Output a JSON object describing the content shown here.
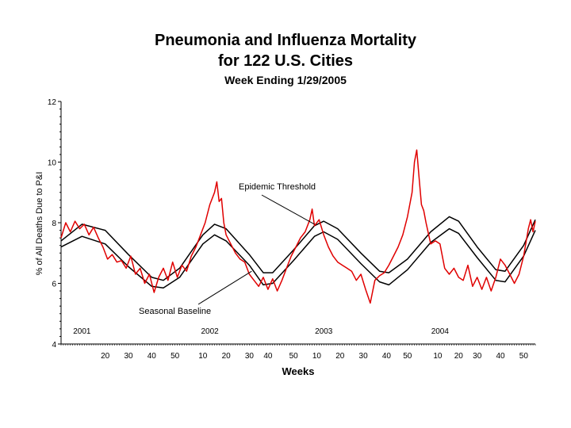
{
  "chart_data": {
    "type": "line",
    "title": "Pneumonia and Influenza Mortality",
    "title_line2": "for 122 U.S. Cities",
    "subtitle": "Week Ending 1/29/2005",
    "xlabel": "Weeks",
    "ylabel": "% of All Deaths Due to P&I",
    "ylim": [
      4,
      12
    ],
    "y_ticks": [
      4,
      6,
      8,
      10,
      12
    ],
    "x_tick_labels": [
      "20",
      "30",
      "40",
      "50",
      "10",
      "20",
      "30",
      "40",
      "50",
      "10",
      "20",
      "30",
      "40",
      "50",
      "10",
      "20",
      "30",
      "40",
      "50"
    ],
    "x_tick_weeks": [
      20,
      30,
      40,
      50,
      62,
      72,
      82,
      90,
      101,
      111,
      121,
      131,
      141,
      150,
      163,
      172,
      180,
      190,
      200
    ],
    "year_labels": [
      {
        "label": "2001",
        "week": 10
      },
      {
        "label": "2002",
        "week": 65
      },
      {
        "label": "2003",
        "week": 114
      },
      {
        "label": "2004",
        "week": 164
      }
    ],
    "x_range_weeks": [
      1,
      205
    ],
    "annotations": [
      {
        "text": "Epidemic Threshold",
        "series": "Epidemic Threshold"
      },
      {
        "text": "Seasonal Baseline",
        "series": "Seasonal Baseline"
      }
    ],
    "grid": false,
    "series": [
      {
        "name": "Epidemic Threshold",
        "color": "#000000",
        "points": [
          [
            1,
            7.4
          ],
          [
            10,
            7.95
          ],
          [
            20,
            7.75
          ],
          [
            30,
            6.95
          ],
          [
            40,
            6.2
          ],
          [
            45,
            6.1
          ],
          [
            52,
            6.5
          ],
          [
            62,
            7.6
          ],
          [
            67,
            7.95
          ],
          [
            72,
            7.8
          ],
          [
            82,
            6.95
          ],
          [
            88,
            6.35
          ],
          [
            92,
            6.35
          ],
          [
            101,
            7.1
          ],
          [
            110,
            7.9
          ],
          [
            114,
            8.05
          ],
          [
            120,
            7.8
          ],
          [
            130,
            7.0
          ],
          [
            138,
            6.4
          ],
          [
            142,
            6.35
          ],
          [
            150,
            6.8
          ],
          [
            160,
            7.7
          ],
          [
            168,
            8.2
          ],
          [
            172,
            8.05
          ],
          [
            180,
            7.2
          ],
          [
            188,
            6.45
          ],
          [
            192,
            6.4
          ],
          [
            200,
            7.25
          ],
          [
            205,
            8.1
          ]
        ]
      },
      {
        "name": "Seasonal Baseline",
        "color": "#000000",
        "points": [
          [
            1,
            7.2
          ],
          [
            10,
            7.55
          ],
          [
            20,
            7.3
          ],
          [
            30,
            6.55
          ],
          [
            40,
            5.9
          ],
          [
            45,
            5.85
          ],
          [
            52,
            6.2
          ],
          [
            62,
            7.3
          ],
          [
            67,
            7.6
          ],
          [
            72,
            7.4
          ],
          [
            82,
            6.6
          ],
          [
            88,
            5.95
          ],
          [
            92,
            6.0
          ],
          [
            101,
            6.75
          ],
          [
            110,
            7.55
          ],
          [
            114,
            7.7
          ],
          [
            120,
            7.45
          ],
          [
            130,
            6.65
          ],
          [
            138,
            6.05
          ],
          [
            142,
            5.95
          ],
          [
            150,
            6.45
          ],
          [
            160,
            7.35
          ],
          [
            168,
            7.8
          ],
          [
            172,
            7.65
          ],
          [
            180,
            6.85
          ],
          [
            188,
            6.1
          ],
          [
            192,
            6.05
          ],
          [
            200,
            6.9
          ],
          [
            205,
            7.75
          ]
        ]
      },
      {
        "name": "P&I",
        "color": "#e00000",
        "points": [
          [
            1,
            7.5
          ],
          [
            3,
            8.0
          ],
          [
            5,
            7.7
          ],
          [
            7,
            8.05
          ],
          [
            9,
            7.8
          ],
          [
            11,
            7.95
          ],
          [
            13,
            7.6
          ],
          [
            15,
            7.85
          ],
          [
            17,
            7.5
          ],
          [
            19,
            7.2
          ],
          [
            21,
            6.8
          ],
          [
            23,
            6.95
          ],
          [
            25,
            6.7
          ],
          [
            27,
            6.75
          ],
          [
            29,
            6.5
          ],
          [
            31,
            6.9
          ],
          [
            33,
            6.3
          ],
          [
            35,
            6.5
          ],
          [
            37,
            6.0
          ],
          [
            39,
            6.3
          ],
          [
            41,
            5.7
          ],
          [
            43,
            6.2
          ],
          [
            45,
            6.5
          ],
          [
            47,
            6.1
          ],
          [
            49,
            6.7
          ],
          [
            51,
            6.2
          ],
          [
            53,
            6.6
          ],
          [
            55,
            6.4
          ],
          [
            57,
            6.9
          ],
          [
            59,
            7.2
          ],
          [
            61,
            7.6
          ],
          [
            63,
            8.0
          ],
          [
            65,
            8.6
          ],
          [
            67,
            9.0
          ],
          [
            68,
            9.35
          ],
          [
            69,
            8.7
          ],
          [
            70,
            8.8
          ],
          [
            71,
            8.0
          ],
          [
            72,
            7.6
          ],
          [
            74,
            7.3
          ],
          [
            76,
            7.0
          ],
          [
            78,
            6.8
          ],
          [
            80,
            6.7
          ],
          [
            82,
            6.3
          ],
          [
            84,
            6.1
          ],
          [
            86,
            5.9
          ],
          [
            88,
            6.2
          ],
          [
            90,
            5.8
          ],
          [
            92,
            6.15
          ],
          [
            94,
            5.75
          ],
          [
            96,
            6.1
          ],
          [
            98,
            6.5
          ],
          [
            100,
            6.9
          ],
          [
            102,
            7.2
          ],
          [
            104,
            7.5
          ],
          [
            106,
            7.7
          ],
          [
            108,
            8.1
          ],
          [
            109,
            8.45
          ],
          [
            110,
            7.9
          ],
          [
            112,
            8.1
          ],
          [
            114,
            7.6
          ],
          [
            116,
            7.2
          ],
          [
            118,
            6.9
          ],
          [
            120,
            6.7
          ],
          [
            122,
            6.6
          ],
          [
            124,
            6.5
          ],
          [
            126,
            6.4
          ],
          [
            128,
            6.1
          ],
          [
            130,
            6.3
          ],
          [
            132,
            5.8
          ],
          [
            134,
            5.35
          ],
          [
            136,
            6.1
          ],
          [
            138,
            6.25
          ],
          [
            140,
            6.35
          ],
          [
            142,
            6.6
          ],
          [
            144,
            6.9
          ],
          [
            146,
            7.2
          ],
          [
            148,
            7.6
          ],
          [
            150,
            8.2
          ],
          [
            152,
            9.0
          ],
          [
            153,
            10.0
          ],
          [
            154,
            10.4
          ],
          [
            155,
            9.5
          ],
          [
            156,
            8.6
          ],
          [
            157,
            8.4
          ],
          [
            158,
            8.0
          ],
          [
            160,
            7.3
          ],
          [
            162,
            7.4
          ],
          [
            164,
            7.3
          ],
          [
            166,
            6.5
          ],
          [
            168,
            6.3
          ],
          [
            170,
            6.5
          ],
          [
            172,
            6.2
          ],
          [
            174,
            6.1
          ],
          [
            176,
            6.6
          ],
          [
            178,
            5.9
          ],
          [
            180,
            6.2
          ],
          [
            182,
            5.8
          ],
          [
            184,
            6.2
          ],
          [
            186,
            5.75
          ],
          [
            188,
            6.2
          ],
          [
            190,
            6.8
          ],
          [
            192,
            6.6
          ],
          [
            194,
            6.3
          ],
          [
            196,
            6.0
          ],
          [
            198,
            6.3
          ],
          [
            200,
            6.9
          ],
          [
            202,
            7.8
          ],
          [
            203,
            8.1
          ],
          [
            204,
            7.7
          ],
          [
            205,
            8.05
          ]
        ]
      }
    ]
  }
}
